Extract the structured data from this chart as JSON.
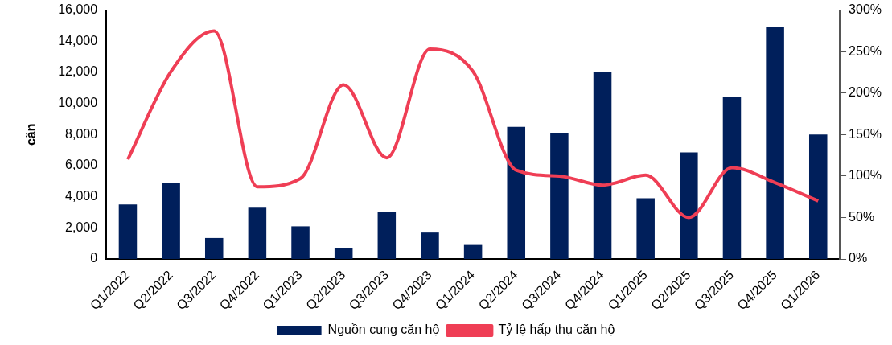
{
  "chart_data": {
    "type": "bar",
    "ylabel": "căn",
    "categories": [
      "Q1/2022",
      "Q2/2022",
      "Q3/2022",
      "Q4/2022",
      "Q1/2023",
      "Q2/2023",
      "Q3/2023",
      "Q4/2023",
      "Q1/2024",
      "Q2/2024",
      "Q3/2024",
      "Q4/2024",
      "Q1/2025",
      "Q2/2025",
      "Q3/2025",
      "Q4/2025",
      "Q1/2026"
    ],
    "series": [
      {
        "name": "Nguồn cung căn hộ",
        "color": "#001f5b",
        "values": [
          3500,
          4900,
          1350,
          3300,
          2100,
          700,
          3000,
          1700,
          900,
          8500,
          8100,
          12000,
          3900,
          6850,
          10400,
          14900,
          8000
        ]
      },
      {
        "name": "Tỷ lệ hấp thụ căn hộ",
        "type": "line",
        "axis": "y2",
        "color": "#ef3e55",
        "values": [
          120,
          226,
          275,
          87,
          97,
          210,
          122,
          253,
          226,
          107,
          100,
          89,
          101,
          50,
          110,
          92,
          70
        ]
      }
    ],
    "ylim": [
      0,
      16000
    ],
    "yticks": [
      {
        "value": 0,
        "label": "0"
      },
      {
        "value": 2000,
        "label": "2,000"
      },
      {
        "value": 4000,
        "label": "4,000"
      },
      {
        "value": 6000,
        "label": "6,000"
      },
      {
        "value": 8000,
        "label": "8,000"
      },
      {
        "value": 10000,
        "label": "10,000"
      },
      {
        "value": 12000,
        "label": "12,000"
      },
      {
        "value": 14000,
        "label": "14,000"
      },
      {
        "value": 16000,
        "label": "16,000"
      }
    ],
    "y2lim": [
      0,
      300
    ],
    "y2ticks": [
      {
        "value": 0,
        "label": "0%"
      },
      {
        "value": 50,
        "label": "50%"
      },
      {
        "value": 100,
        "label": "100%"
      },
      {
        "value": 150,
        "label": "150%"
      },
      {
        "value": 200,
        "label": "200%"
      },
      {
        "value": 250,
        "label": "250%"
      },
      {
        "value": 300,
        "label": "300%"
      }
    ],
    "legend": "bottom",
    "grid": false,
    "marker": "none",
    "line_style": "solid"
  }
}
